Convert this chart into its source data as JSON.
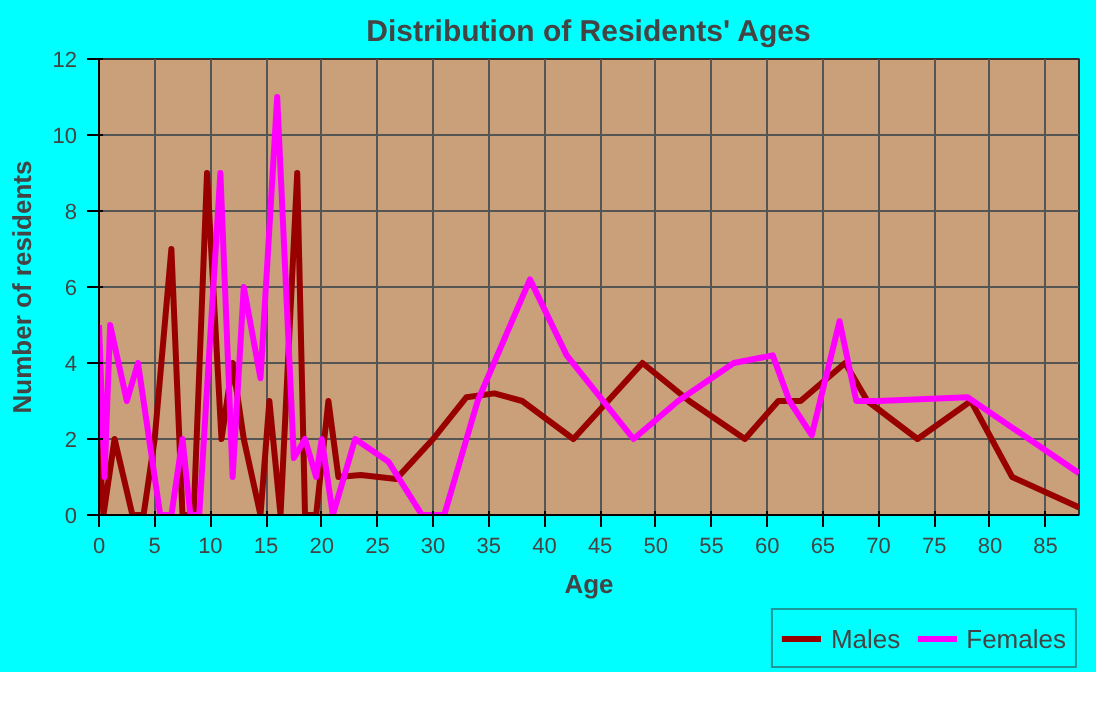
{
  "chart_data": {
    "type": "line",
    "title": "Distribution of Residents' Ages",
    "xlabel": "Age",
    "ylabel": "Number of residents",
    "xlim": [
      0,
      88
    ],
    "ylim": [
      0,
      12
    ],
    "xticks": [
      0,
      5,
      10,
      15,
      20,
      25,
      30,
      35,
      40,
      45,
      50,
      55,
      60,
      65,
      70,
      75,
      80,
      85
    ],
    "yticks": [
      0,
      2,
      4,
      6,
      8,
      10,
      12
    ],
    "grid": true,
    "legend": "bottom right",
    "line_style": "solid",
    "marker": "none",
    "series": [
      {
        "name": "Males",
        "color": "#990000",
        "x": [
          0,
          0.4,
          1.4,
          3,
          4,
          5,
          6.5,
          7.5,
          8.5,
          9.7,
          11,
          12,
          13,
          14.5,
          15.3,
          16.3,
          17.8,
          18.5,
          19.5,
          20.6,
          21.5,
          23.5,
          26.7,
          30,
          33,
          35.5,
          38,
          42.6,
          48.8,
          53,
          58,
          61,
          63,
          67,
          69,
          73.5,
          78.3,
          82,
          88
        ],
        "values": [
          2,
          0,
          2,
          0,
          0,
          2,
          7,
          0,
          0,
          9,
          2,
          4,
          2,
          0,
          3,
          0,
          9,
          0,
          0,
          3,
          1,
          1.05,
          0.95,
          2,
          3.1,
          3.2,
          3,
          2,
          4,
          3,
          2,
          3,
          3,
          4,
          3,
          2,
          3,
          1,
          0.2
        ]
      },
      {
        "name": "Females",
        "color": "#ff00ff",
        "x": [
          0,
          0.5,
          1,
          2.5,
          3.5,
          5.5,
          6.5,
          7.5,
          8.2,
          9,
          10.9,
          12,
          13,
          14.5,
          16,
          17.5,
          18.5,
          19.5,
          20,
          21,
          23,
          26,
          29,
          31,
          34,
          38.7,
          42,
          48,
          52,
          57,
          60.5,
          62,
          64,
          66.5,
          68,
          70,
          78,
          88
        ],
        "values": [
          5,
          1,
          5,
          3,
          4,
          0,
          0,
          2,
          0,
          0,
          9,
          1,
          6,
          3.6,
          11,
          1.5,
          2,
          1,
          2,
          0,
          2,
          1.4,
          0,
          0,
          3,
          6.2,
          4.2,
          2,
          3,
          4,
          4.2,
          3,
          2.1,
          5.1,
          3,
          3,
          3.1,
          1.1
        ]
      }
    ]
  }
}
